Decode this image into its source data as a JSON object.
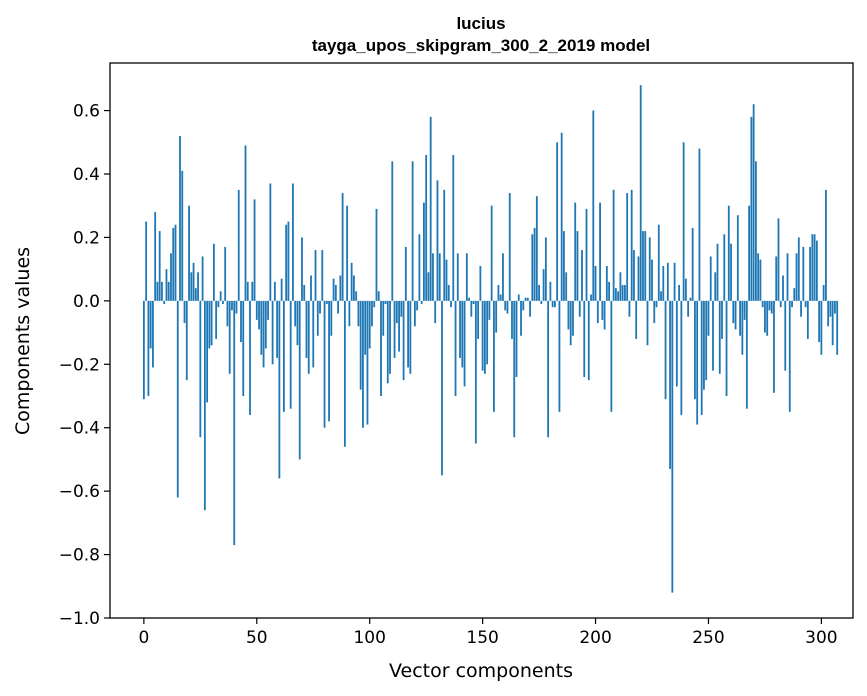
{
  "chart_data": {
    "type": "bar",
    "title": "lucius",
    "subtitle": "tayga_upos_skipgram_300_2_2019 model",
    "xlabel": "Vector components",
    "ylabel": "Components values",
    "xlim": [
      -15,
      314
    ],
    "ylim": [
      -1.0,
      0.75
    ],
    "xticks": [
      0,
      50,
      100,
      150,
      200,
      250,
      300
    ],
    "xtick_labels": [
      "0",
      "50",
      "100",
      "150",
      "200",
      "250",
      "300"
    ],
    "yticks": [
      -1.0,
      -0.8,
      -0.6,
      -0.4,
      -0.2,
      0.0,
      0.2,
      0.4,
      0.6
    ],
    "ytick_labels": [
      "−1.0",
      "−0.8",
      "−0.6",
      "−0.4",
      "−0.2",
      "0.0",
      "0.2",
      "0.4",
      "0.6"
    ],
    "grid": false,
    "bar_color": "#1f77b4",
    "series": [
      {
        "values": [
          -0.31,
          0.25,
          -0.3,
          -0.15,
          -0.21,
          0.28,
          0.06,
          0.22,
          0.06,
          -0.01,
          0.1,
          0.06,
          0.15,
          0.23,
          0.24,
          -0.62,
          0.52,
          0.41,
          -0.07,
          -0.25,
          0.3,
          0.09,
          0.12,
          0.04,
          0.09,
          -0.43,
          0.14,
          -0.66,
          -0.32,
          -0.15,
          -0.14,
          0.18,
          -0.12,
          -0.02,
          0.03,
          -0.01,
          0.17,
          -0.08,
          -0.23,
          -0.03,
          -0.77,
          -0.04,
          0.35,
          -0.13,
          -0.3,
          0.49,
          0.06,
          -0.36,
          0.06,
          0.32,
          -0.06,
          -0.09,
          -0.17,
          -0.21,
          -0.15,
          -0.06,
          0.37,
          -0.2,
          0.06,
          -0.18,
          -0.56,
          0.07,
          -0.35,
          0.24,
          0.25,
          -0.34,
          0.37,
          -0.08,
          -0.14,
          -0.5,
          0.2,
          0.05,
          -0.18,
          -0.23,
          0.08,
          -0.21,
          0.16,
          -0.11,
          -0.04,
          0.16,
          -0.4,
          -0.01,
          -0.38,
          -0.11,
          0.07,
          0.05,
          -0.04,
          0.08,
          0.34,
          -0.46,
          0.3,
          -0.08,
          0.12,
          0.08,
          0.03,
          -0.08,
          -0.28,
          -0.4,
          -0.17,
          -0.39,
          -0.15,
          -0.08,
          -0.02,
          0.29,
          0.03,
          -0.3,
          -0.11,
          -0.01,
          -0.26,
          -0.23,
          0.44,
          -0.18,
          -0.07,
          -0.16,
          -0.05,
          -0.25,
          0.17,
          -0.21,
          -0.23,
          0.44,
          -0.08,
          -0.03,
          0.21,
          -0.01,
          0.31,
          0.46,
          0.09,
          0.58,
          0.15,
          -0.07,
          0.38,
          0.15,
          -0.55,
          0.35,
          0.13,
          0.05,
          -0.02,
          0.46,
          -0.3,
          0.15,
          -0.18,
          -0.21,
          -0.27,
          0.15,
          0.01,
          -0.05,
          -0.01,
          -0.45,
          -0.12,
          0.11,
          -0.22,
          -0.23,
          -0.2,
          -0.06,
          0.3,
          -0.35,
          -0.1,
          0.05,
          0.02,
          0.15,
          -0.03,
          -0.04,
          0.34,
          -0.12,
          -0.43,
          -0.24,
          0.02,
          -0.11,
          -0.03,
          0.01,
          0.01,
          -0.05,
          0.21,
          0.23,
          0.33,
          0.05,
          -0.01,
          0.1,
          0.2,
          -0.43,
          0.06,
          -0.02,
          -0.02,
          0.5,
          -0.35,
          0.53,
          0.22,
          0.09,
          -0.09,
          -0.14,
          -0.11,
          0.31,
          0.22,
          -0.05,
          0.16,
          -0.24,
          0.29,
          -0.25,
          0.02,
          0.6,
          0.11,
          -0.07,
          0.31,
          -0.06,
          -0.09,
          0.11,
          0.06,
          -0.35,
          0.35,
          0.04,
          0.03,
          0.09,
          0.05,
          0.05,
          0.34,
          -0.05,
          0.35,
          0.16,
          -0.12,
          0.14,
          0.68,
          0.22,
          0.22,
          -0.14,
          0.2,
          0.13,
          -0.07,
          -0.02,
          0.24,
          0.03,
          0.11,
          -0.31,
          0.12,
          -0.53,
          -0.92,
          0.12,
          -0.27,
          0.05,
          -0.36,
          0.5,
          0.07,
          -0.05,
          0.01,
          0.23,
          -0.31,
          -0.39,
          0.48,
          -0.36,
          -0.28,
          -0.25,
          -0.11,
          0.14,
          -0.22,
          0.09,
          0.18,
          -0.23,
          -0.12,
          0.21,
          -0.3,
          0.3,
          0.18,
          -0.07,
          -0.09,
          0.27,
          -0.11,
          -0.17,
          -0.06,
          -0.34,
          0.3,
          0.58,
          0.62,
          0.44,
          0.15,
          0.13,
          -0.02,
          -0.1,
          -0.11,
          -0.03,
          -0.04,
          -0.29,
          0.14,
          0.26,
          -0.02,
          0.08,
          -0.22,
          0.15,
          -0.35,
          -0.02,
          0.04,
          0.15,
          0.2,
          -0.05,
          0.17,
          -0.02,
          -0.12,
          0.17,
          0.21,
          0.21,
          0.19,
          -0.13,
          -0.17,
          0.05,
          0.35,
          -0.08,
          -0.05,
          -0.14,
          -0.04,
          -0.17
        ]
      }
    ]
  }
}
